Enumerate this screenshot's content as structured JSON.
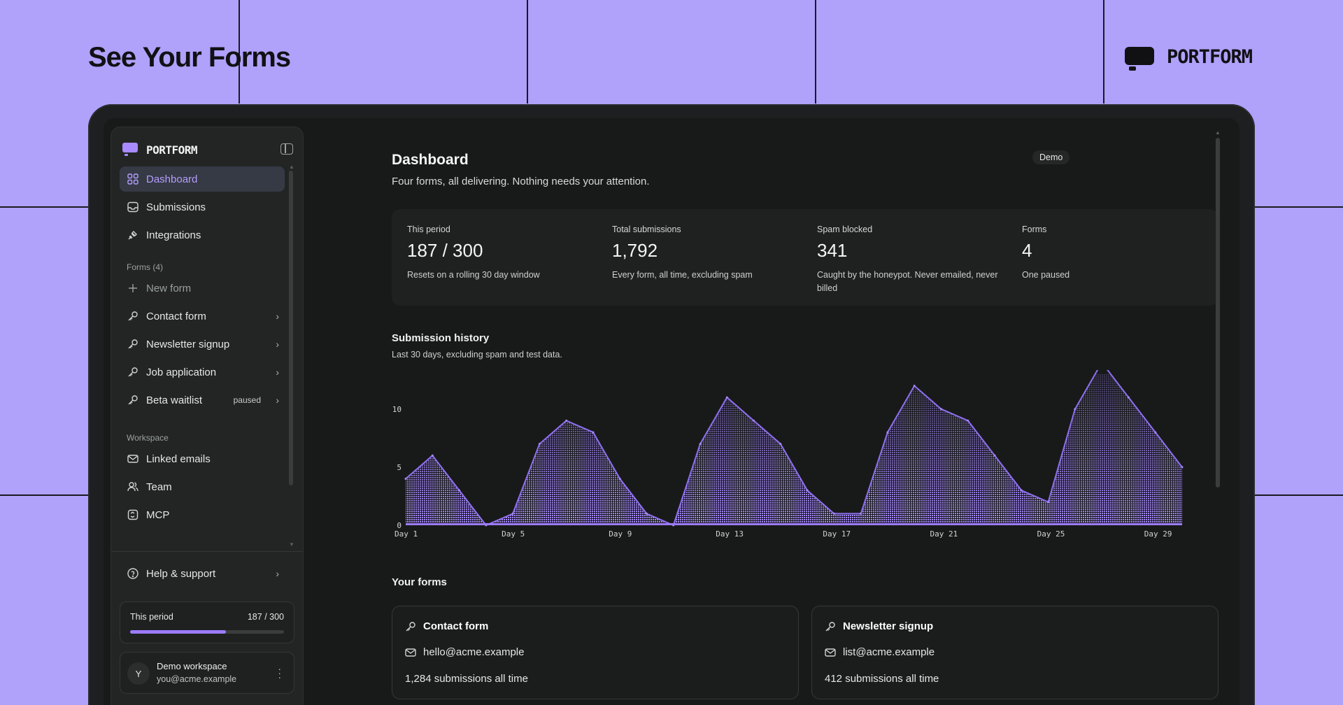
{
  "hero": {
    "title": "See Your Forms",
    "brand": "PORTFORM"
  },
  "sidebar": {
    "brand": "PORTFORM",
    "nav": [
      {
        "label": "Dashboard",
        "icon": "grid-icon",
        "active": true
      },
      {
        "label": "Submissions",
        "icon": "inbox-icon"
      },
      {
        "label": "Integrations",
        "icon": "plug-icon"
      }
    ],
    "forms_label": "Forms (4)",
    "new_form": "New form",
    "forms": [
      {
        "label": "Contact form",
        "badge": ""
      },
      {
        "label": "Newsletter signup",
        "badge": ""
      },
      {
        "label": "Job application",
        "badge": ""
      },
      {
        "label": "Beta waitlist",
        "badge": "paused"
      }
    ],
    "workspace_label": "Workspace",
    "workspace": [
      {
        "label": "Linked emails",
        "icon": "mail-icon"
      },
      {
        "label": "Team",
        "icon": "users-icon"
      },
      {
        "label": "MCP",
        "icon": "mcp-icon"
      }
    ],
    "help": "Help & support",
    "period": {
      "label": "This period",
      "value": "187 / 300",
      "fraction": 0.623
    },
    "account": {
      "avatar": "Y",
      "name": "Demo workspace",
      "email": "you@acme.example"
    }
  },
  "main": {
    "title": "Dashboard",
    "subtitle": "Four forms, all delivering. Nothing needs your attention.",
    "badge": "Demo",
    "stats": [
      {
        "label": "This period",
        "value": "187 / 300",
        "desc": "Resets on a rolling 30 day window"
      },
      {
        "label": "Total submissions",
        "value": "1,792",
        "desc": "Every form, all time, excluding spam"
      },
      {
        "label": "Spam blocked",
        "value": "341",
        "desc": "Caught by the honeypot. Never emailed, never billed"
      },
      {
        "label": "Forms",
        "value": "4",
        "desc": "One paused"
      }
    ],
    "chart_title": "Submission history",
    "chart_subtitle": "Last 30 days, excluding spam and test data.",
    "forms_title": "Your forms",
    "form_cards": [
      {
        "name": "Contact form",
        "email": "hello@acme.example",
        "count": "1,284 submissions all time"
      },
      {
        "name": "Newsletter signup",
        "email": "list@acme.example",
        "count": "412 submissions all time"
      }
    ]
  },
  "colors": {
    "accent": "#a98bff",
    "background": "#b0a1fb",
    "panel": "#181a1a"
  },
  "chart_data": {
    "type": "area",
    "title": "Submission history",
    "xlabel": "",
    "ylabel": "",
    "x": [
      1,
      2,
      3,
      4,
      5,
      6,
      7,
      8,
      9,
      10,
      11,
      12,
      13,
      14,
      15,
      16,
      17,
      18,
      19,
      20,
      21,
      22,
      23,
      24,
      25,
      26,
      27,
      28,
      29,
      30
    ],
    "x_tick_labels": [
      "Day 1",
      "Day 5",
      "Day 9",
      "Day 13",
      "Day 17",
      "Day 21",
      "Day 25",
      "Day 29"
    ],
    "x_ticks": [
      1,
      5,
      9,
      13,
      17,
      21,
      25,
      29
    ],
    "y_ticks": [
      0,
      5,
      10
    ],
    "ylim": [
      0,
      13
    ],
    "series": [
      {
        "values": [
          4,
          6,
          3,
          0,
          1,
          7,
          9,
          8,
          4,
          1,
          0,
          7,
          11,
          9,
          7,
          3,
          1,
          1,
          8,
          12,
          10,
          9,
          6,
          3,
          2,
          10,
          14,
          11,
          8,
          5
        ]
      }
    ],
    "grid": false,
    "legend": "none"
  }
}
